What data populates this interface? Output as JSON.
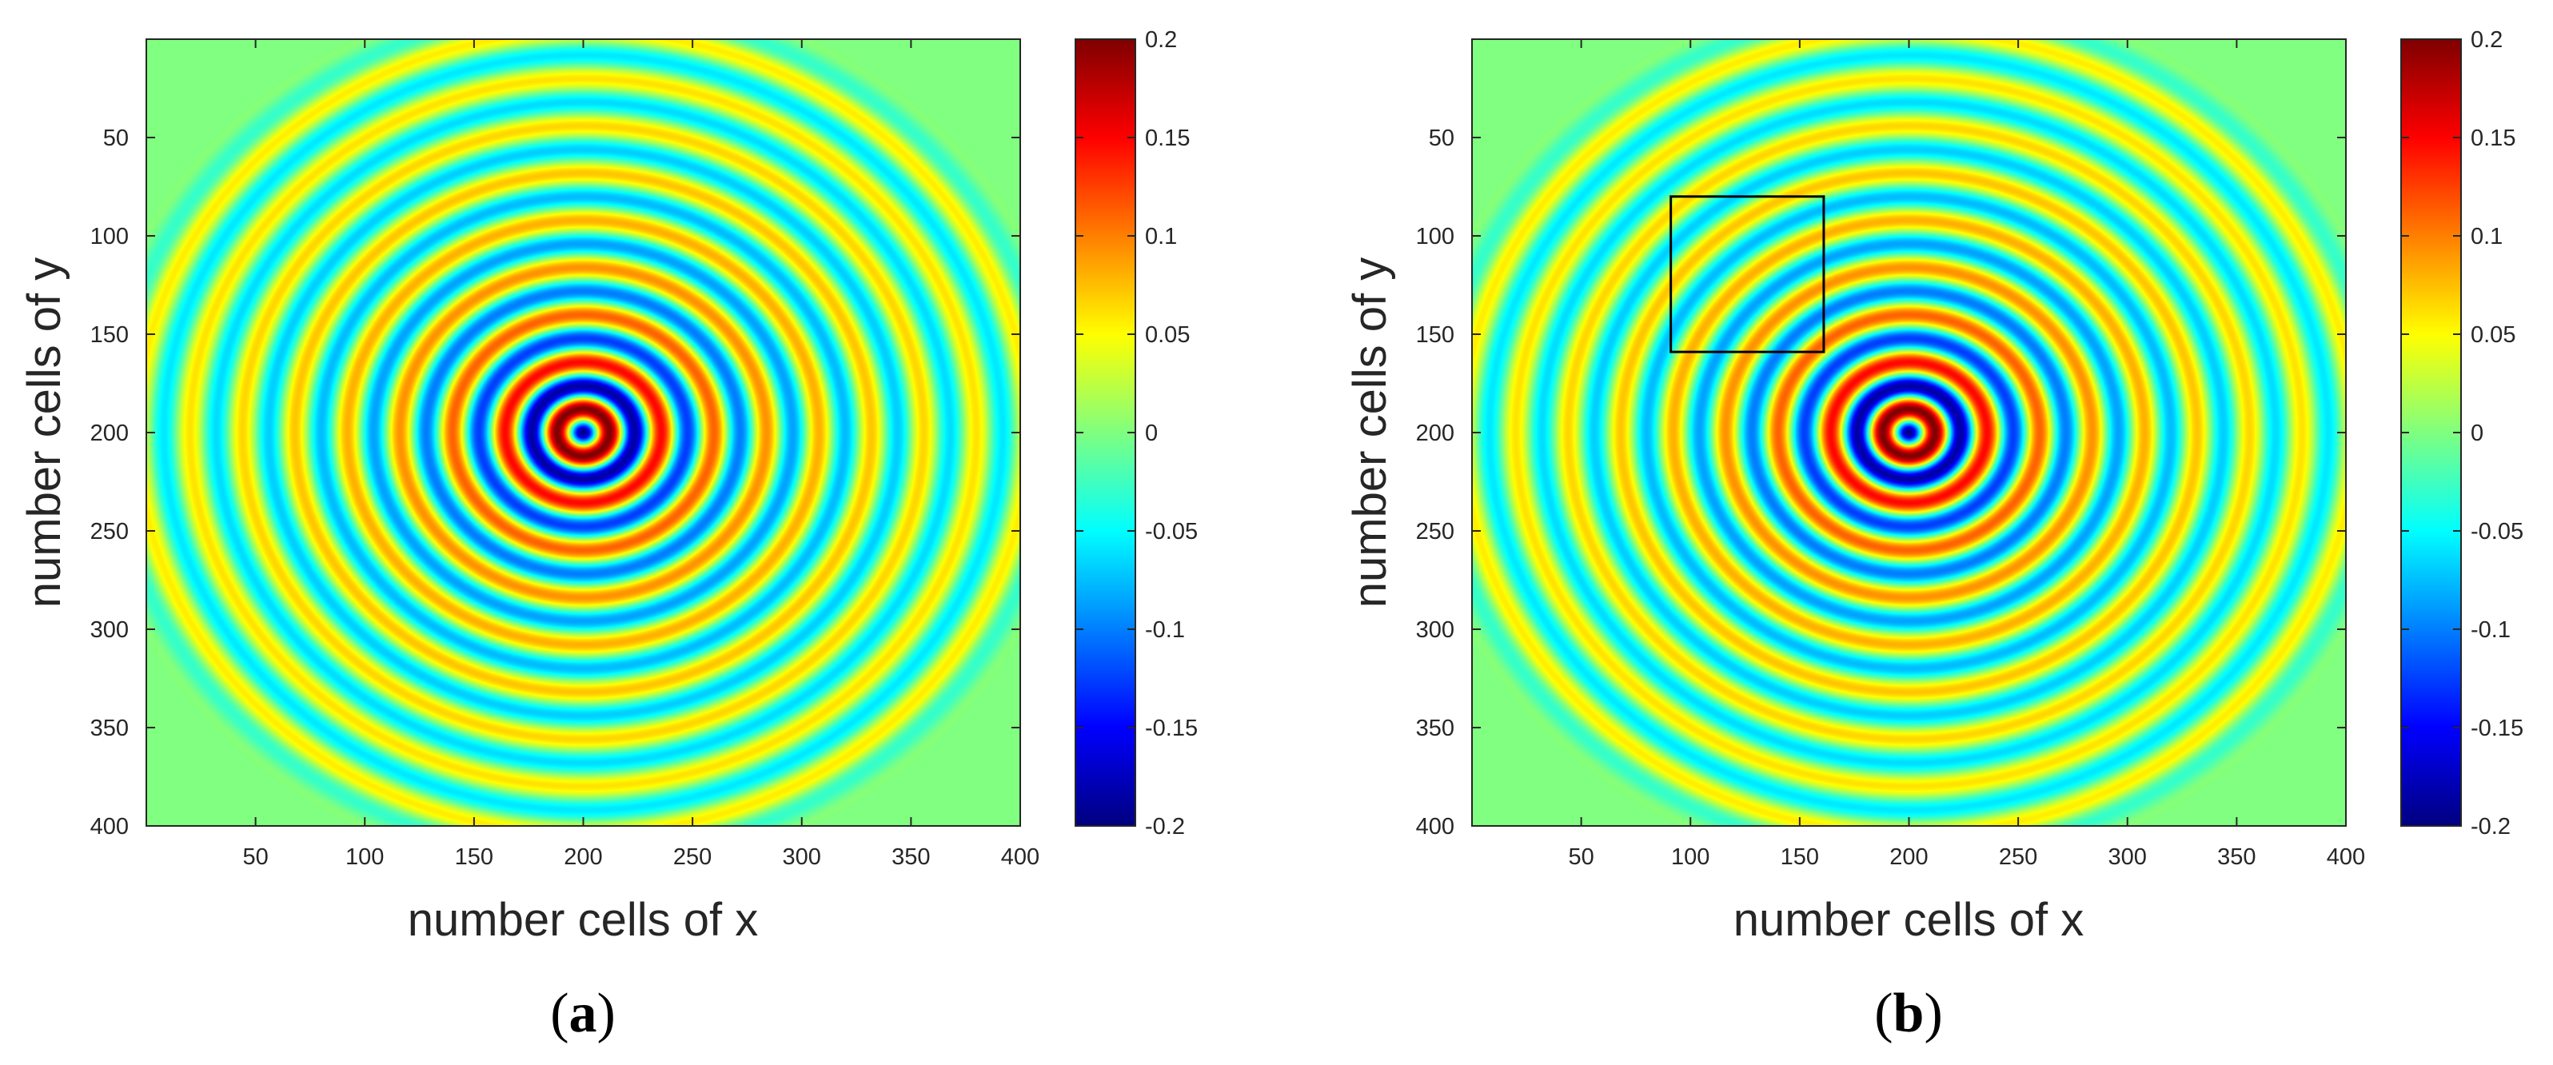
{
  "chart_data": [
    {
      "type": "heatmap",
      "panel_label": "(a)",
      "panel_label_parts": {
        "open": "(",
        "letter": "a",
        "close": ")"
      },
      "xlabel": "number cells of x",
      "ylabel": "number cells of y",
      "xlim": [
        0,
        400
      ],
      "ylim": [
        400,
        0
      ],
      "x_ticks": [
        50,
        100,
        150,
        200,
        250,
        300,
        350,
        400
      ],
      "y_ticks": [
        50,
        100,
        150,
        200,
        250,
        300,
        350,
        400
      ],
      "field": {
        "description_type": "concentric circular wave",
        "center_x": 200,
        "center_y": 200,
        "wavefront_radius": 220,
        "ring_period": 24,
        "peak_amplitude": 0.2
      },
      "colorbar": {
        "colormap": "jet",
        "min": -0.2,
        "max": 0.2,
        "ticks": [
          0.2,
          0.15,
          0.1,
          0.05,
          0,
          -0.05,
          -0.1,
          -0.15,
          -0.2
        ],
        "tick_labels": [
          "0.2",
          "0.15",
          "0.1",
          "0.05",
          "0",
          "-0.05",
          "-0.1",
          "-0.15",
          "-0.2"
        ]
      }
    },
    {
      "type": "heatmap",
      "panel_label": "(b)",
      "panel_label_parts": {
        "open": "(",
        "letter": "b",
        "close": ")"
      },
      "xlabel": "number cells of x",
      "ylabel": "number cells of y",
      "xlim": [
        0,
        400
      ],
      "ylim": [
        400,
        0
      ],
      "x_ticks": [
        50,
        100,
        150,
        200,
        250,
        300,
        350,
        400
      ],
      "y_ticks": [
        50,
        100,
        150,
        200,
        250,
        300,
        350,
        400
      ],
      "field": {
        "description_type": "concentric circular wave",
        "center_x": 200,
        "center_y": 200,
        "wavefront_radius": 220,
        "ring_period": 24,
        "peak_amplitude": 0.2
      },
      "annotation_box": {
        "x_min": 91,
        "x_max": 161,
        "y_min": 80,
        "y_max": 159
      },
      "colorbar": {
        "colormap": "jet",
        "min": -0.2,
        "max": 0.2,
        "ticks": [
          0.2,
          0.15,
          0.1,
          0.05,
          0,
          -0.05,
          -0.1,
          -0.15,
          -0.2
        ],
        "tick_labels": [
          "0.2",
          "0.15",
          "0.1",
          "0.05",
          "0",
          "-0.05",
          "-0.1",
          "-0.15",
          "-0.2"
        ]
      }
    }
  ]
}
